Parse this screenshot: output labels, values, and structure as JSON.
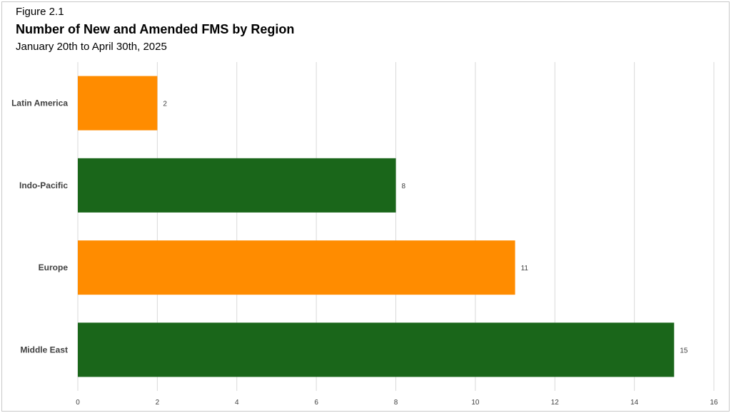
{
  "figure_label": "Figure 2.1",
  "subtitle": "January 20th to April 30th, 2025",
  "chart_data": {
    "type": "bar",
    "orientation": "horizontal",
    "title": "Number of New and Amended FMS by Region",
    "categories": [
      "Latin America",
      "Indo-Pacific",
      "Europe",
      "Middle East"
    ],
    "values": [
      2,
      8,
      11,
      15
    ],
    "bar_colors": [
      "#FF8C00",
      "#1A661A",
      "#FF8C00",
      "#1A661A"
    ],
    "xlim": [
      0,
      16
    ],
    "x_ticks": [
      0,
      2,
      4,
      6,
      8,
      10,
      12,
      14,
      16
    ],
    "grid": true,
    "data_labels": true,
    "legend": "none"
  }
}
